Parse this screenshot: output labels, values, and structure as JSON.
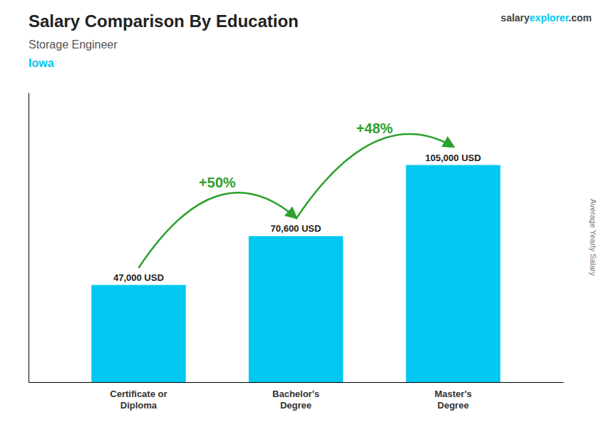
{
  "chart_data": {
    "type": "bar",
    "title": "Salary Comparison By Education",
    "subtitle": "Storage Engineer",
    "location": "Iowa",
    "watermark": [
      "salary",
      "explorer",
      ".com"
    ],
    "ylabel": "Average Yearly Salary",
    "categories": [
      "Certificate or\nDiploma",
      "Bachelor's\nDegree",
      "Master's\nDegree"
    ],
    "values": [
      47000,
      70600,
      105000
    ],
    "value_labels": [
      "47,000 USD",
      "70,600 USD",
      "105,000 USD"
    ],
    "data_labels": true,
    "annotations": [
      "+50%",
      "+48%"
    ],
    "color": "#00c8f0",
    "ylim": [
      0,
      140000
    ],
    "tick_labels": "x",
    "grid": false
  }
}
